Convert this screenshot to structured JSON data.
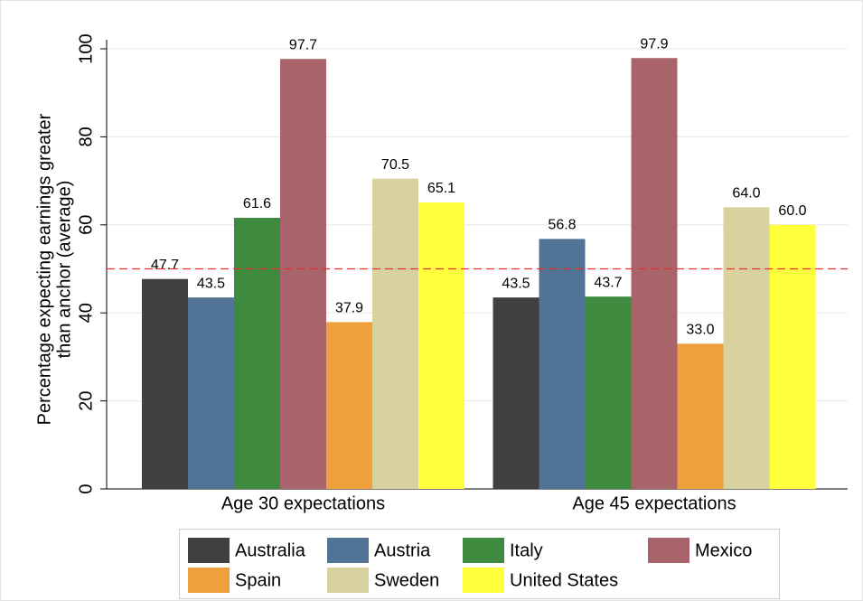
{
  "chart_data": {
    "type": "bar",
    "ylabel": [
      "Percentage expecting earnings greater",
      "than anchor (average)"
    ],
    "categories": [
      "Age 30 expectations",
      "Age 45 expectations"
    ],
    "series": [
      {
        "name": "Australia",
        "color": "#404040",
        "values": [
          47.7,
          43.5
        ],
        "value_labels": [
          "47.7",
          "43.5"
        ]
      },
      {
        "name": "Austria",
        "color": "#517395",
        "values": [
          43.5,
          56.8
        ],
        "value_labels": [
          "43.5",
          "56.8"
        ]
      },
      {
        "name": "Italy",
        "color": "#3e8a3e",
        "values": [
          61.6,
          43.7
        ],
        "value_labels": [
          "61.6",
          "43.7"
        ]
      },
      {
        "name": "Mexico",
        "color": "#a8646a",
        "values": [
          97.7,
          97.9
        ],
        "value_labels": [
          "97.7",
          "97.9"
        ]
      },
      {
        "name": "Spain",
        "color": "#eda03c",
        "values": [
          37.9,
          33.0
        ],
        "value_labels": [
          "37.9",
          "33.0"
        ]
      },
      {
        "name": "Sweden",
        "color": "#d7d29e",
        "values": [
          70.5,
          64.0
        ],
        "value_labels": [
          "70.5",
          "64.0"
        ]
      },
      {
        "name": "United States",
        "color": "#ffff3c",
        "values": [
          65.1,
          60.0
        ],
        "value_labels": [
          "65.1",
          "60.0"
        ]
      }
    ],
    "reference_line": {
      "value": 50,
      "color": "#e03030"
    },
    "ylim": [
      0,
      100
    ],
    "yticks": [
      0,
      20,
      40,
      60,
      80,
      100
    ],
    "grid": true
  }
}
